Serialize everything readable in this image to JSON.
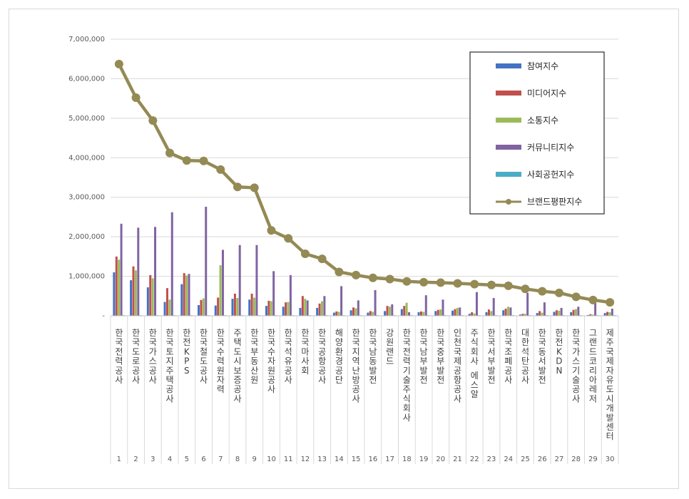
{
  "chart_data": {
    "type": "bar",
    "title": "",
    "xlabel": "",
    "ylabel": "",
    "ylim": [
      0,
      7000000
    ],
    "yticks": [
      "-",
      "1,000,000",
      "2,000,000",
      "3,000,000",
      "4,000,000",
      "5,000,000",
      "6,000,000",
      "7,000,000"
    ],
    "grid": true,
    "legend_position": "top-right",
    "ranks": [
      "1",
      "2",
      "3",
      "4",
      "5",
      "6",
      "7",
      "8",
      "9",
      "10",
      "11",
      "12",
      "13",
      "14",
      "15",
      "16",
      "17",
      "18",
      "19",
      "20",
      "21",
      "22",
      "23",
      "24",
      "25",
      "26",
      "27",
      "28",
      "29",
      "30"
    ],
    "categories": [
      "한국전력공사",
      "한국도로공사",
      "한국가스공사",
      "한국토지주택공사",
      "한전KPS",
      "한국철도공사",
      "한국수력원자력",
      "주택도시보증공사",
      "한국부동산원",
      "한국수자원공사",
      "한국석유공사",
      "한국마사회",
      "한국공항공사",
      "해양환경공단",
      "한국지역난방공사",
      "한국남동발전",
      "강원랜드",
      "한국전력기술주식회사",
      "한국남부발전",
      "한국중부발전",
      "인천국제공항공사",
      "주식회사 에스알",
      "한국서부발전",
      "한국조폐공사",
      "대한석탄공사",
      "한국동서발전",
      "한전KDN",
      "한국가스기술공사",
      "그랜드코리아레저",
      "제주국제자유도시개발센터"
    ],
    "series": [
      {
        "name": "참여지수",
        "color": "#4472c4",
        "values": [
          1100000,
          900000,
          720000,
          350000,
          800000,
          270000,
          260000,
          430000,
          410000,
          250000,
          230000,
          200000,
          200000,
          80000,
          140000,
          80000,
          120000,
          170000,
          90000,
          120000,
          130000,
          50000,
          90000,
          140000,
          30000,
          70000,
          100000,
          90000,
          20000,
          70000
        ]
      },
      {
        "name": "미디어지수",
        "color": "#c0504d",
        "values": [
          1500000,
          1250000,
          1030000,
          700000,
          1080000,
          400000,
          460000,
          560000,
          560000,
          380000,
          340000,
          500000,
          310000,
          110000,
          210000,
          120000,
          250000,
          250000,
          110000,
          150000,
          170000,
          90000,
          160000,
          180000,
          50000,
          120000,
          140000,
          150000,
          40000,
          100000
        ]
      },
      {
        "name": "소통지수",
        "color": "#9bbb59",
        "values": [
          1420000,
          1150000,
          950000,
          410000,
          1020000,
          440000,
          1280000,
          450000,
          460000,
          370000,
          350000,
          430000,
          370000,
          100000,
          190000,
          100000,
          230000,
          330000,
          100000,
          160000,
          200000,
          60000,
          120000,
          230000,
          50000,
          80000,
          130000,
          170000,
          30000,
          90000
        ]
      },
      {
        "name": "커뮤니티지수",
        "color": "#8064a2",
        "values": [
          2330000,
          2230000,
          2250000,
          2620000,
          1060000,
          2760000,
          1670000,
          1790000,
          1790000,
          1130000,
          1030000,
          390000,
          500000,
          750000,
          390000,
          650000,
          290000,
          90000,
          520000,
          410000,
          210000,
          600000,
          450000,
          210000,
          580000,
          340000,
          200000,
          230000,
          380000,
          180000
        ]
      },
      {
        "name": "사회공헌지수",
        "color": "#4bacc6",
        "values": [
          10000,
          10000,
          10000,
          10000,
          10000,
          10000,
          10000,
          10000,
          10000,
          10000,
          10000,
          10000,
          10000,
          10000,
          10000,
          10000,
          10000,
          10000,
          10000,
          10000,
          10000,
          10000,
          10000,
          10000,
          10000,
          10000,
          10000,
          10000,
          10000,
          10000
        ]
      },
      {
        "name": "브랜드평판지수",
        "color": "#948a54",
        "type": "line",
        "values": [
          6370000,
          5520000,
          4940000,
          4120000,
          3930000,
          3920000,
          3700000,
          3260000,
          3240000,
          2160000,
          1960000,
          1570000,
          1440000,
          1110000,
          1030000,
          960000,
          930000,
          870000,
          850000,
          840000,
          820000,
          800000,
          780000,
          760000,
          680000,
          620000,
          580000,
          480000,
          400000,
          340000
        ]
      }
    ]
  }
}
